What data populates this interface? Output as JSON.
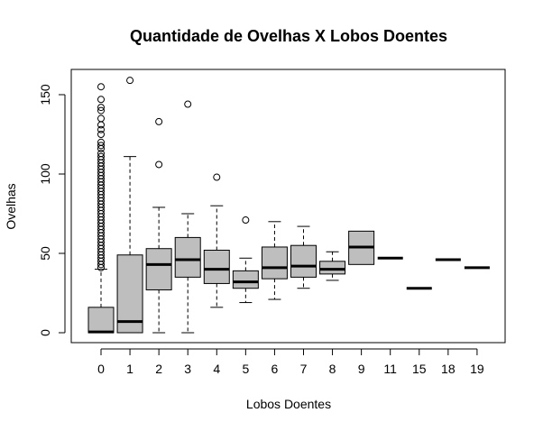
{
  "chart_data": {
    "type": "boxplot",
    "title": "Quantidade de Ovelhas X Lobos Doentes",
    "xlabel": "Lobos Doentes",
    "ylabel": "Ovelhas",
    "ylim": [
      -4,
      162
    ],
    "yticks": [
      0,
      50,
      100,
      150
    ],
    "grid": false,
    "box_fill": "#bebebe",
    "line_color": "#000000",
    "categories": [
      "0",
      "1",
      "2",
      "3",
      "4",
      "5",
      "6",
      "7",
      "8",
      "9",
      "11",
      "15",
      "18",
      "19"
    ],
    "boxes": [
      {
        "category": "0",
        "low": 0,
        "q1": 0,
        "median": 0.5,
        "q3": 16,
        "high": 40,
        "outliers": [
          155,
          147,
          142,
          140,
          135,
          131,
          128,
          125,
          120,
          118,
          116,
          113,
          111,
          109,
          107,
          105,
          103,
          101,
          99,
          97,
          95,
          93,
          91,
          89,
          87,
          85,
          83,
          81,
          79,
          77,
          75,
          73,
          71,
          69,
          67,
          65,
          63,
          61,
          59,
          57,
          55,
          53,
          51,
          49,
          47,
          45,
          43,
          41
        ]
      },
      {
        "category": "1",
        "low": 0,
        "q1": 0,
        "median": 7,
        "q3": 49,
        "high": 111,
        "outliers": [
          159
        ]
      },
      {
        "category": "2",
        "low": 0,
        "q1": 27,
        "median": 43,
        "q3": 53,
        "high": 79,
        "outliers": [
          106,
          133
        ]
      },
      {
        "category": "3",
        "low": 0,
        "q1": 35,
        "median": 46,
        "q3": 60,
        "high": 75,
        "outliers": [
          144
        ]
      },
      {
        "category": "4",
        "low": 16,
        "q1": 31,
        "median": 40,
        "q3": 52,
        "high": 80,
        "outliers": [
          98
        ]
      },
      {
        "category": "5",
        "low": 19,
        "q1": 28,
        "median": 32,
        "q3": 39,
        "high": 47,
        "outliers": [
          71
        ]
      },
      {
        "category": "6",
        "low": 21,
        "q1": 34,
        "median": 41,
        "q3": 54,
        "high": 70,
        "outliers": []
      },
      {
        "category": "7",
        "low": 28,
        "q1": 35,
        "median": 42,
        "q3": 55,
        "high": 67,
        "outliers": []
      },
      {
        "category": "8",
        "low": 33,
        "q1": 37,
        "median": 40,
        "q3": 45,
        "high": 51,
        "outliers": []
      },
      {
        "category": "9",
        "low": 43,
        "q1": 43,
        "median": 54,
        "q3": 64,
        "high": 64,
        "outliers": []
      },
      {
        "category": "11",
        "low": 47,
        "q1": 47,
        "median": 47,
        "q3": 47,
        "high": 47,
        "outliers": []
      },
      {
        "category": "15",
        "low": 28,
        "q1": 28,
        "median": 28,
        "q3": 28,
        "high": 28,
        "outliers": []
      },
      {
        "category": "18",
        "low": 46,
        "q1": 46,
        "median": 46,
        "q3": 46,
        "high": 46,
        "outliers": []
      },
      {
        "category": "19",
        "low": 41,
        "q1": 41,
        "median": 41,
        "q3": 41,
        "high": 41,
        "outliers": []
      }
    ]
  }
}
